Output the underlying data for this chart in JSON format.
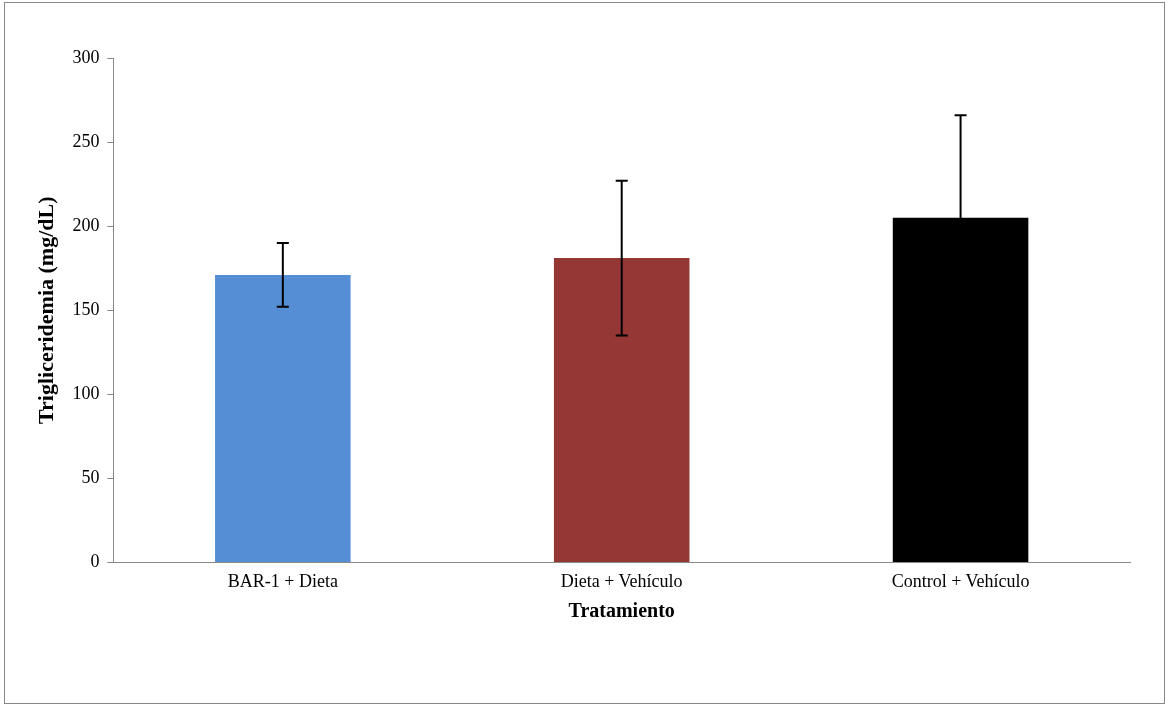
{
  "chart_data": {
    "type": "bar",
    "xlabel": "Tratamiento",
    "ylabel": "Trigliceridemia (mg/dL)",
    "categories": [
      "BAR-1 + Dieta",
      "Dieta + Vehículo",
      "Control + Vehículo"
    ],
    "values": [
      171,
      181,
      205
    ],
    "colors": [
      "#558ed5",
      "#953735",
      "#000000"
    ],
    "errors": [
      19,
      46,
      61
    ],
    "ylim": [
      0,
      300
    ],
    "yticks": [
      0,
      50,
      100,
      150,
      200,
      250,
      300
    ],
    "grid": false,
    "legend": false
  }
}
